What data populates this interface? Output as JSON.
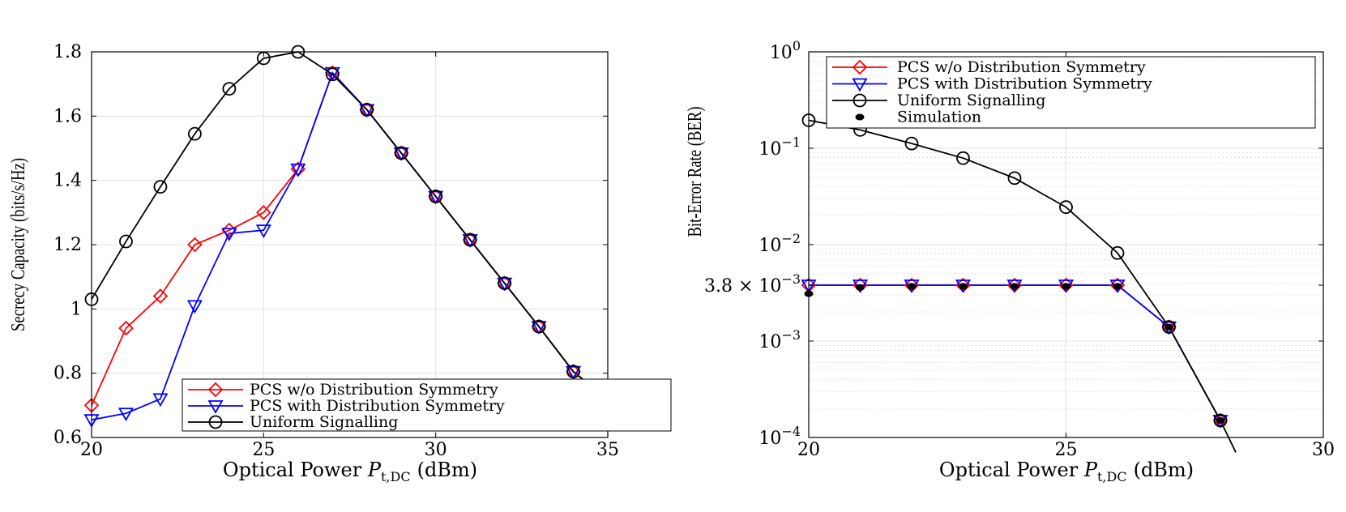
{
  "chart_data": [
    {
      "type": "line",
      "xlabel": "Optical Power",
      "xlabel_symbol": "P",
      "xlabel_subscript": "t,DC",
      "xlabel_unit": "(dBm)",
      "ylabel": "Secrecy Capacity (bits/s/Hz)",
      "xlim": [
        20,
        35
      ],
      "ylim": [
        0.6,
        1.8
      ],
      "xticks": [
        20,
        25,
        30,
        35
      ],
      "xtick_labels": [
        "20",
        "25",
        "30",
        "35"
      ],
      "yticks": [
        0.6,
        0.8,
        1.0,
        1.2,
        1.4,
        1.6,
        1.8
      ],
      "ytick_labels": [
        "0.6",
        "0.8",
        "1",
        "1.2",
        "1.4",
        "1.6",
        "1.8"
      ],
      "grid": true,
      "legend_position": "bottom-right",
      "series": [
        {
          "name": "PCS w/o Distribution Symmetry",
          "color": "#ff0000",
          "marker": "diamond",
          "x": [
            20,
            21,
            22,
            23,
            24,
            25,
            26,
            27,
            28,
            29,
            30,
            31,
            32,
            33,
            34,
            34.4
          ],
          "y": [
            0.7,
            0.94,
            1.04,
            1.2,
            1.245,
            1.3,
            1.435,
            1.735,
            1.62,
            1.485,
            1.35,
            1.215,
            1.08,
            0.945,
            0.805,
            0.77
          ],
          "marker_count": 15
        },
        {
          "name": "PCS with Distribution Symmetry",
          "color": "#0000ff",
          "marker": "triangle-down",
          "x": [
            20,
            21,
            22,
            23,
            24,
            25,
            26,
            27,
            28,
            29,
            30,
            31,
            32,
            33,
            34,
            34.4
          ],
          "y": [
            0.655,
            0.675,
            0.72,
            1.01,
            1.235,
            1.245,
            1.435,
            1.735,
            1.62,
            1.485,
            1.35,
            1.215,
            1.08,
            0.945,
            0.805,
            0.77
          ],
          "marker_count": 15
        },
        {
          "name": "Uniform Signalling",
          "color": "#000000",
          "marker": "circle",
          "x": [
            20,
            21,
            22,
            23,
            24,
            25,
            26,
            27,
            28,
            29,
            30,
            31,
            32,
            33,
            34,
            34.4
          ],
          "y": [
            1.03,
            1.21,
            1.38,
            1.545,
            1.685,
            1.78,
            1.8,
            1.73,
            1.62,
            1.485,
            1.35,
            1.215,
            1.08,
            0.945,
            0.805,
            0.77
          ],
          "marker_count": 15
        }
      ]
    },
    {
      "type": "line",
      "xlabel": "Optical Power",
      "xlabel_symbol": "P",
      "xlabel_subscript": "t,DC",
      "xlabel_unit": "(dBm)",
      "ylabel": "Bit-Error Rate (BER)",
      "y_scale": "log",
      "xlim": [
        20,
        30
      ],
      "ylim": [
        0.0001,
        1
      ],
      "xticks": [
        20,
        25,
        30
      ],
      "xtick_labels": [
        "20",
        "25",
        "30"
      ],
      "ytick_values": [
        1,
        0.1,
        0.01,
        0.0038,
        0.001,
        0.0001
      ],
      "ytick_mantissa": [
        "",
        "",
        "",
        "3.8 ×",
        "",
        ""
      ],
      "ytick_bases": [
        "10",
        "10",
        "10",
        "10",
        "10",
        "10"
      ],
      "ytick_exponents": [
        "0",
        "−1",
        "−2",
        "−3",
        "−3",
        "−4"
      ],
      "grid": true,
      "legend_position": "top",
      "series": [
        {
          "name": "PCS w/o Distribution Symmetry",
          "color": "#ff0000",
          "marker": "diamond",
          "x": [
            20,
            21,
            22,
            23,
            24,
            25,
            26,
            27,
            28
          ],
          "y": [
            0.0038,
            0.0038,
            0.0038,
            0.0038,
            0.0038,
            0.0038,
            0.0038,
            0.0014,
            0.00015
          ]
        },
        {
          "name": "PCS with Distribution Symmetry",
          "color": "#0000ff",
          "marker": "triangle-down",
          "x": [
            20,
            21,
            22,
            23,
            24,
            25,
            26,
            27,
            28
          ],
          "y": [
            0.0038,
            0.0038,
            0.0038,
            0.0038,
            0.0038,
            0.0038,
            0.0038,
            0.0014,
            0.00015
          ]
        },
        {
          "name": "Uniform Signalling",
          "color": "#000000",
          "marker": "circle",
          "x": [
            20,
            21,
            22,
            23,
            24,
            25,
            26,
            27,
            28,
            28.3
          ],
          "y": [
            0.195,
            0.155,
            0.112,
            0.079,
            0.049,
            0.0245,
            0.0082,
            0.0014,
            0.00015,
            7e-05
          ]
        },
        {
          "name": "Simulation",
          "color": "#000000",
          "marker": "dot",
          "x": [
            20,
            21,
            22,
            23,
            24,
            25,
            26,
            27,
            28
          ],
          "y": [
            0.0031,
            0.0036,
            0.0037,
            0.0037,
            0.0037,
            0.0037,
            0.0037,
            0.0014,
            0.00015
          ]
        }
      ]
    }
  ]
}
